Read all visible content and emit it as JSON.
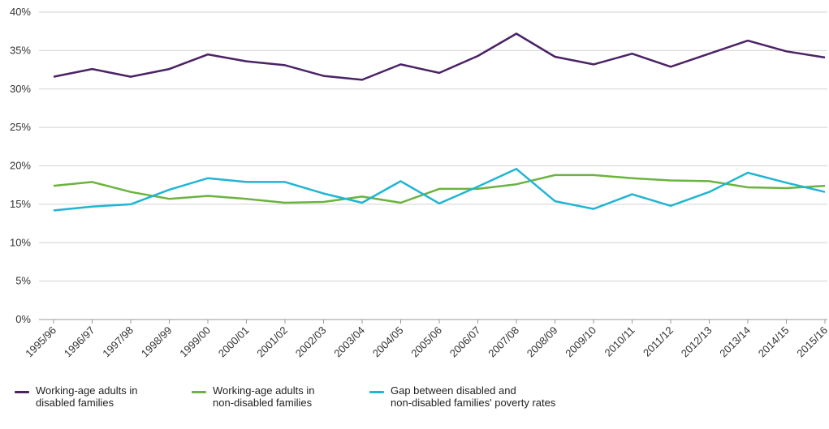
{
  "chart_data": {
    "type": "line",
    "x": [
      "1995/96",
      "1996/97",
      "1997/98",
      "1998/99",
      "1999/00",
      "2000/01",
      "2001/02",
      "2002/03",
      "2003/04",
      "2004/05",
      "2005/06",
      "2006/07",
      "2007/08",
      "2008/09",
      "2009/10",
      "2010/11",
      "2011/12",
      "2012/13",
      "2013/14",
      "2014/15",
      "2015/16"
    ],
    "y_ticks": [
      "0%",
      "5%",
      "10%",
      "15%",
      "20%",
      "25%",
      "30%",
      "35%",
      "40%"
    ],
    "ylim": [
      0,
      40
    ],
    "grid": true,
    "legend_position": "bottom",
    "series": [
      {
        "name": "Working-age adults in\ndisabled families",
        "color": "#4a2266",
        "values": [
          31.6,
          32.6,
          31.6,
          32.6,
          34.5,
          33.6,
          33.1,
          31.7,
          31.2,
          33.2,
          32.1,
          34.3,
          37.2,
          34.2,
          33.2,
          34.6,
          32.9,
          34.6,
          36.3,
          34.9,
          34.1
        ]
      },
      {
        "name": "Working-age adults in\nnon-disabled families",
        "color": "#6bb33e",
        "values": [
          17.4,
          17.9,
          16.6,
          15.7,
          16.1,
          15.7,
          15.2,
          15.3,
          16.0,
          15.2,
          17.0,
          17.0,
          17.6,
          18.8,
          18.8,
          18.4,
          18.1,
          18.0,
          17.2,
          17.1,
          17.4
        ]
      },
      {
        "name": "Gap between disabled and\nnon-disabled families' poverty rates",
        "color": "#1fb5d4",
        "values": [
          14.2,
          14.7,
          15.0,
          16.9,
          18.4,
          17.9,
          17.9,
          16.4,
          15.2,
          18.0,
          15.1,
          17.3,
          19.6,
          15.4,
          14.4,
          16.3,
          14.8,
          16.6,
          19.1,
          17.8,
          16.6
        ]
      }
    ]
  }
}
